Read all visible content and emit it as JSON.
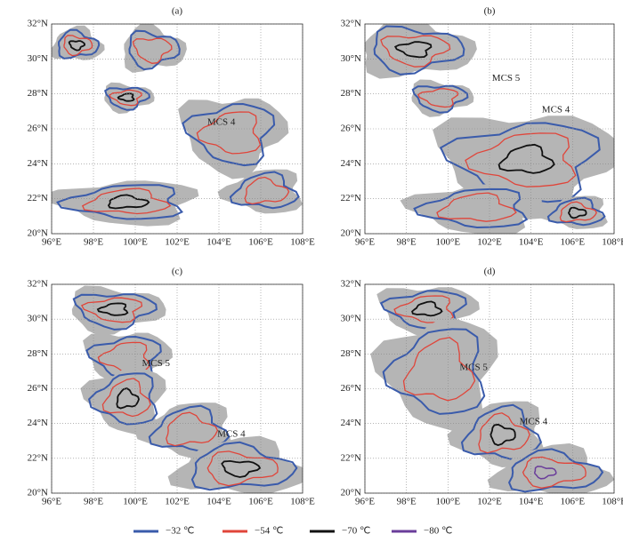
{
  "axes": {
    "xlim": [
      96,
      108
    ],
    "ylim": [
      20,
      32
    ],
    "xticks": [
      {
        "value": 96,
        "label": "96°E"
      },
      {
        "value": 98,
        "label": "98°E"
      },
      {
        "value": 100,
        "label": "100°E"
      },
      {
        "value": 102,
        "label": "102°E"
      },
      {
        "value": 104,
        "label": "104°E"
      },
      {
        "value": 106,
        "label": "106°E"
      },
      {
        "value": 108,
        "label": "108°E"
      }
    ],
    "yticks": [
      {
        "value": 20,
        "label": "20°N"
      },
      {
        "value": 22,
        "label": "22°N"
      },
      {
        "value": 24,
        "label": "24°N"
      },
      {
        "value": 26,
        "label": "26°N"
      },
      {
        "value": 28,
        "label": "28°N"
      },
      {
        "value": 30,
        "label": "30°N"
      },
      {
        "value": 32,
        "label": "32°N"
      }
    ]
  },
  "panels": [
    {
      "label": "(a)",
      "annotations": [
        "MCS 4"
      ]
    },
    {
      "label": "(b)",
      "annotations": [
        "MCS 5",
        "MCS 4"
      ]
    },
    {
      "label": "(c)",
      "annotations": [
        "MCS 5",
        "MCS 4"
      ]
    },
    {
      "label": "(d)",
      "annotations": [
        "MCS 5",
        "MCS 4"
      ]
    }
  ],
  "legend": [
    {
      "label": "−32 ℃",
      "color": "#3a5bab"
    },
    {
      "label": "−54 ℃",
      "color": "#e0453a"
    },
    {
      "label": "−70 ℃",
      "color": "#111111"
    },
    {
      "label": "−80 ℃",
      "color": "#6a3d9a"
    }
  ]
}
